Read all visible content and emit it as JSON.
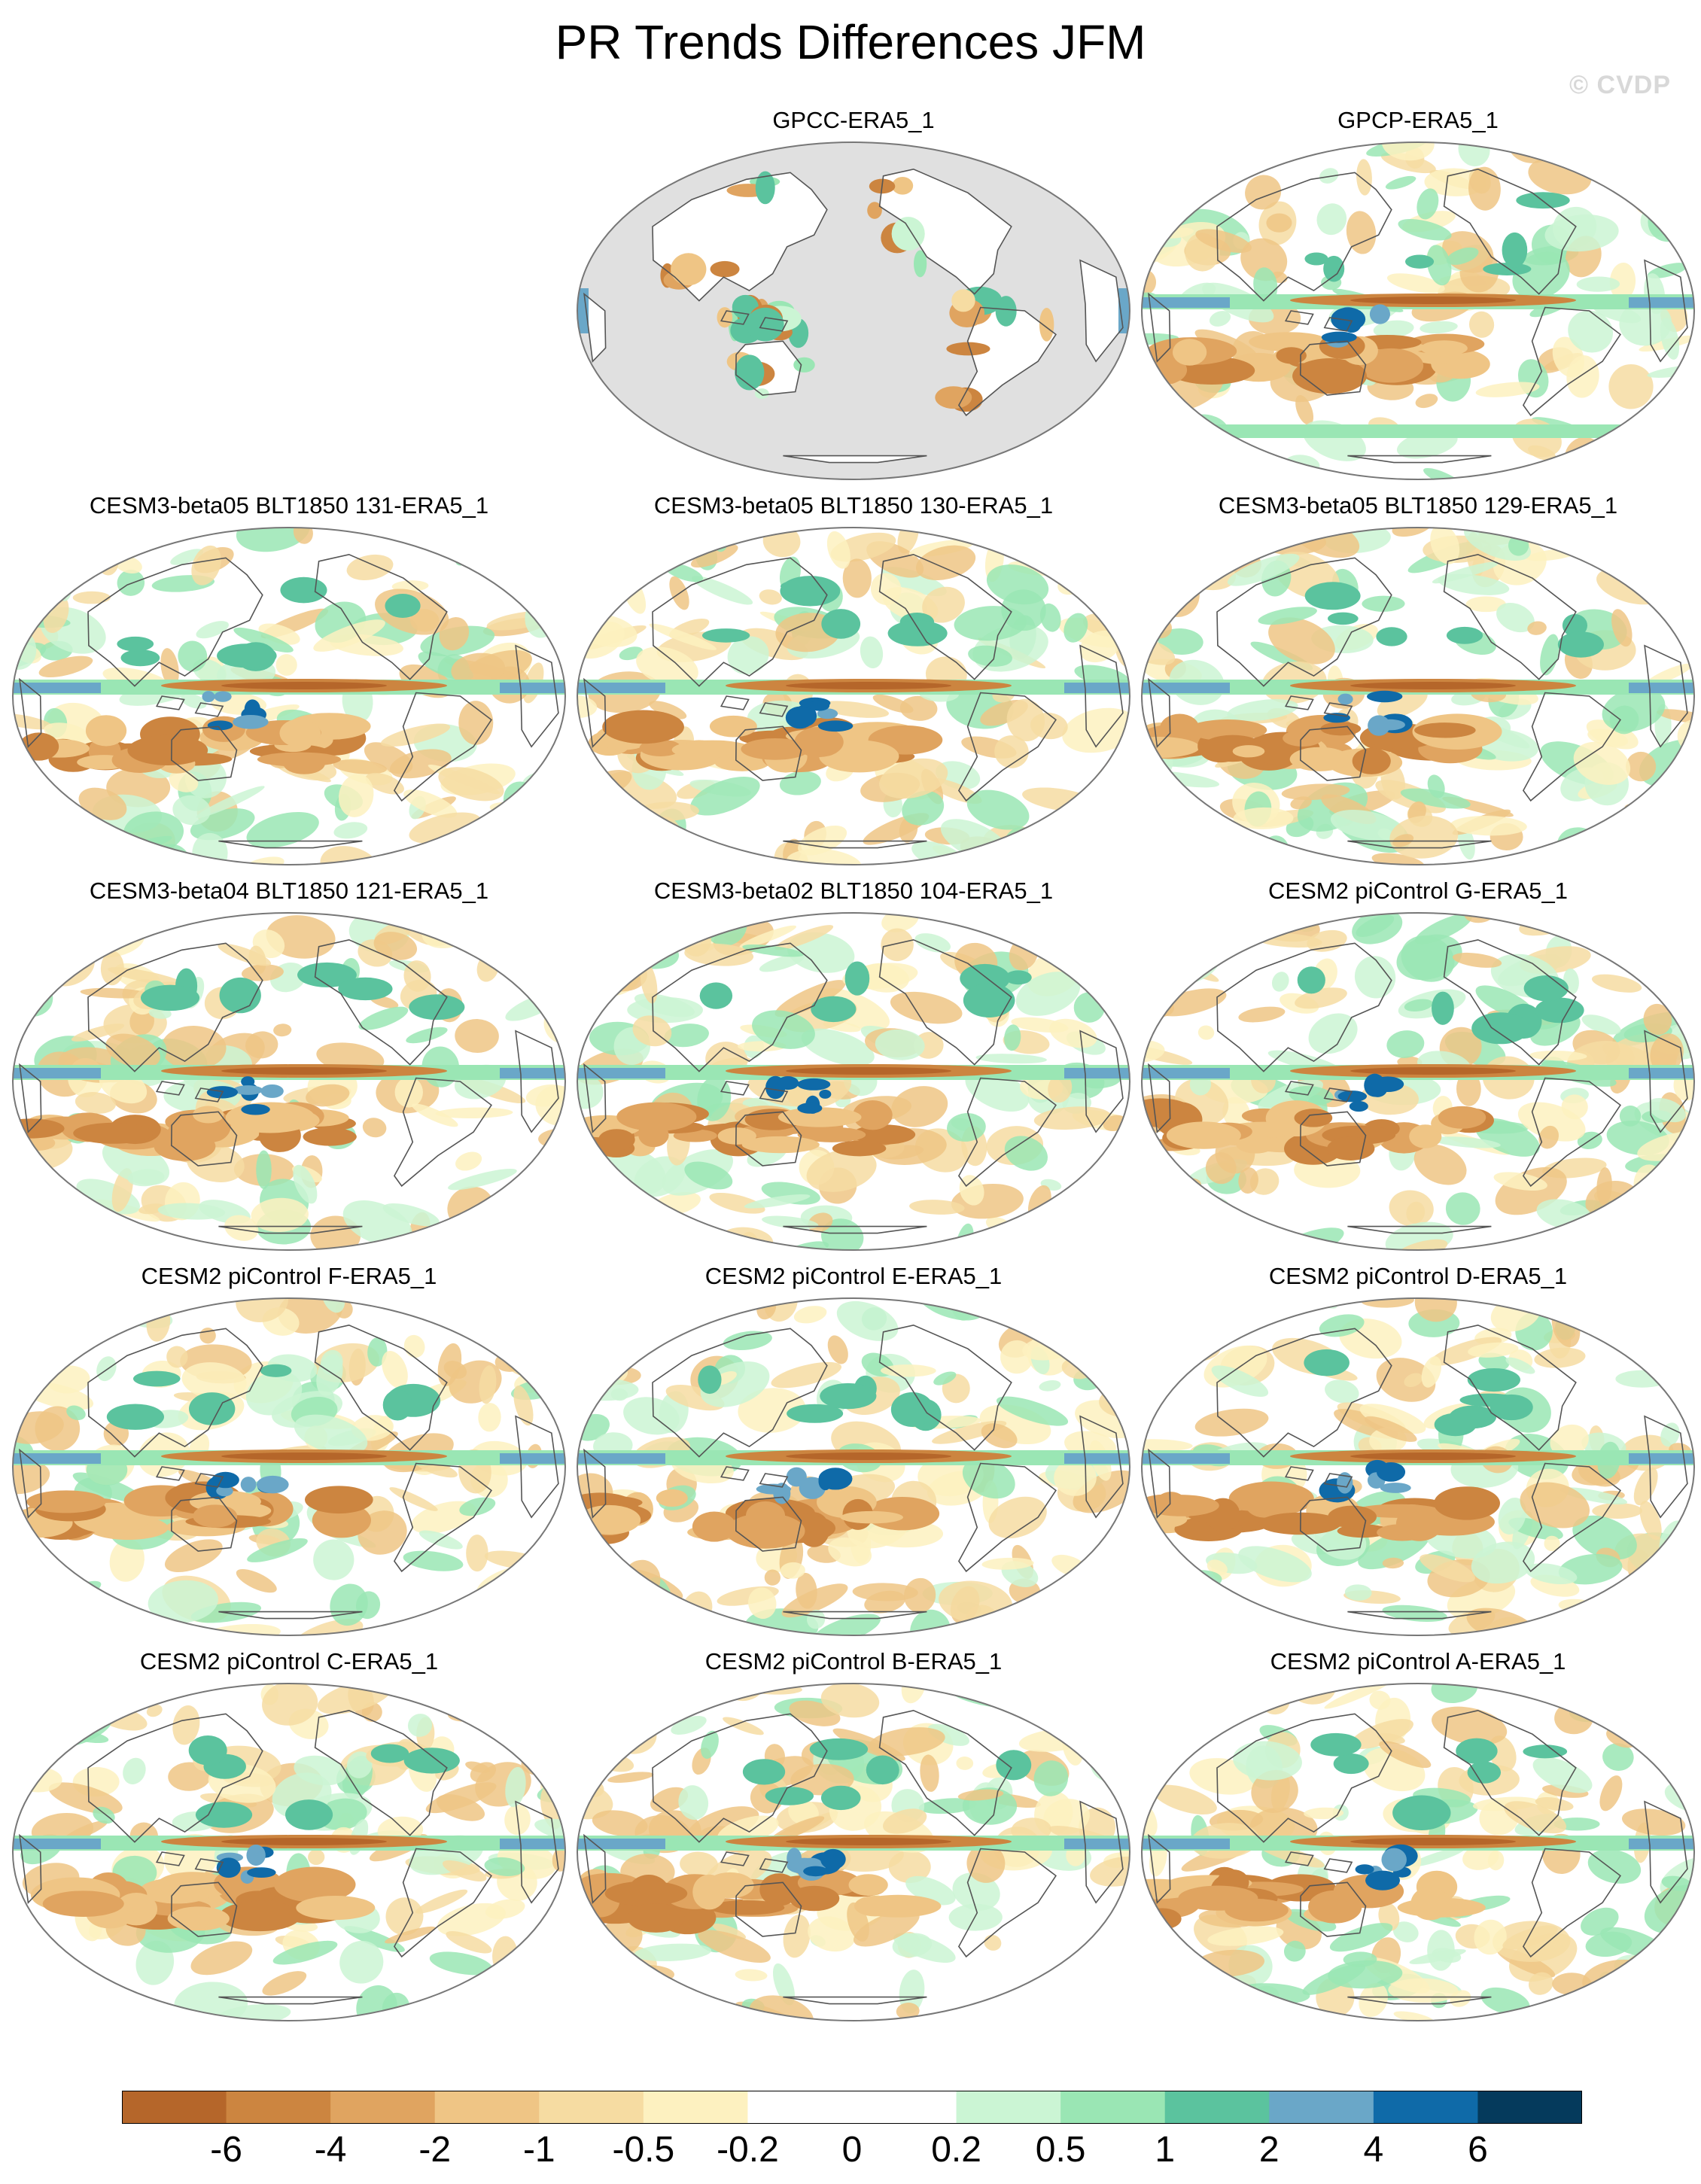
{
  "figure": {
    "title": "PR Trends Differences JFM",
    "watermark": "© CVDP"
  },
  "colors": {
    "land_mask": "#e0e0e0",
    "coastline": "#555555",
    "outline": "#777777"
  },
  "panels": [
    {
      "title": "GPCC-ERA5_1",
      "land_only": true,
      "seed": 3
    },
    {
      "title": "GPCP-ERA5_1",
      "land_only": false,
      "seed": 7
    },
    {
      "title": "CESM3-beta05 BLT1850 131-ERA5_1",
      "land_only": false,
      "seed": 11
    },
    {
      "title": "CESM3-beta05 BLT1850 130-ERA5_1",
      "land_only": false,
      "seed": 13
    },
    {
      "title": "CESM3-beta05 BLT1850 129-ERA5_1",
      "land_only": false,
      "seed": 17
    },
    {
      "title": "CESM3-beta04 BLT1850 121-ERA5_1",
      "land_only": false,
      "seed": 19
    },
    {
      "title": "CESM3-beta02 BLT1850 104-ERA5_1",
      "land_only": false,
      "seed": 23
    },
    {
      "title": "CESM2 piControl G-ERA5_1",
      "land_only": false,
      "seed": 29
    },
    {
      "title": "CESM2 piControl F-ERA5_1",
      "land_only": false,
      "seed": 31
    },
    {
      "title": "CESM2 piControl E-ERA5_1",
      "land_only": false,
      "seed": 37
    },
    {
      "title": "CESM2 piControl D-ERA5_1",
      "land_only": false,
      "seed": 41
    },
    {
      "title": "CESM2 piControl C-ERA5_1",
      "land_only": false,
      "seed": 43
    },
    {
      "title": "CESM2 piControl B-ERA5_1",
      "land_only": false,
      "seed": 47
    },
    {
      "title": "CESM2 piControl A-ERA5_1",
      "land_only": false,
      "seed": 53
    }
  ],
  "colorbar": {
    "colors": [
      "#b5662a",
      "#cc8540",
      "#e0a460",
      "#efc585",
      "#f6dca2",
      "#fdf1c0",
      "#ffffff",
      "#ffffff",
      "#cbf5d4",
      "#9ae6b4",
      "#5bc39e",
      "#6aa7c8",
      "#0f6aa8",
      "#053a5c"
    ],
    "labels": [
      "-6",
      "-4",
      "-2",
      "-1",
      "-0.5",
      "-0.2",
      "0",
      "0.2",
      "0.5",
      "1",
      "2",
      "4",
      "6"
    ]
  }
}
